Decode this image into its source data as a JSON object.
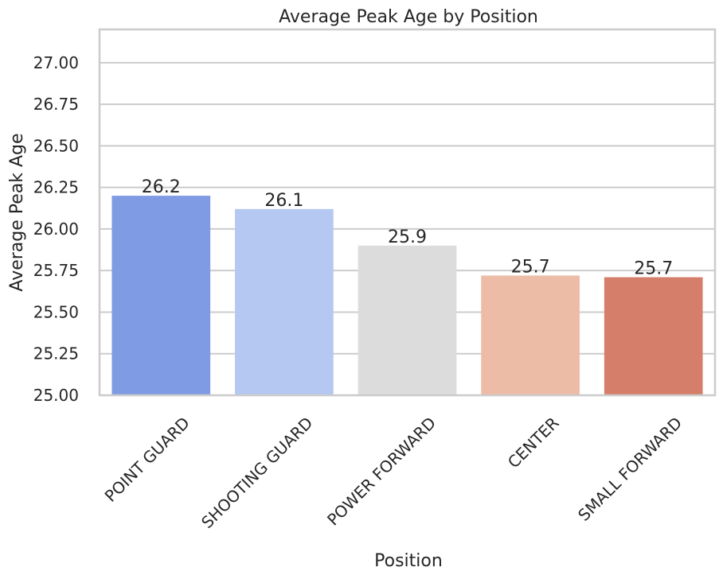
{
  "chart_data": {
    "type": "bar",
    "title": "Average Peak Age by Position",
    "xlabel": "Position",
    "ylabel": "Average Peak Age",
    "categories": [
      "POINT GUARD",
      "SHOOTING GUARD",
      "POWER FORWARD",
      "CENTER",
      "SMALL FORWARD"
    ],
    "values": [
      26.2,
      26.12,
      25.9,
      25.72,
      25.71
    ],
    "data_labels": [
      "26.2",
      "26.1",
      "25.9",
      "25.7",
      "25.7"
    ],
    "colors": [
      "#7f9be3",
      "#b5c8f2",
      "#dcdcdc",
      "#ecbca6",
      "#d57e6a"
    ],
    "ylim": [
      25.0,
      27.2
    ],
    "yticks": [
      "25.00",
      "25.25",
      "25.50",
      "25.75",
      "26.00",
      "26.25",
      "26.50",
      "26.75",
      "27.00"
    ],
    "ytick_values": [
      25.0,
      25.25,
      25.5,
      25.75,
      26.0,
      26.25,
      26.5,
      26.75,
      27.0
    ],
    "grid": true,
    "grid_color": "#cccccc",
    "spine_color": "#cccccc",
    "text_color": "#262626"
  }
}
